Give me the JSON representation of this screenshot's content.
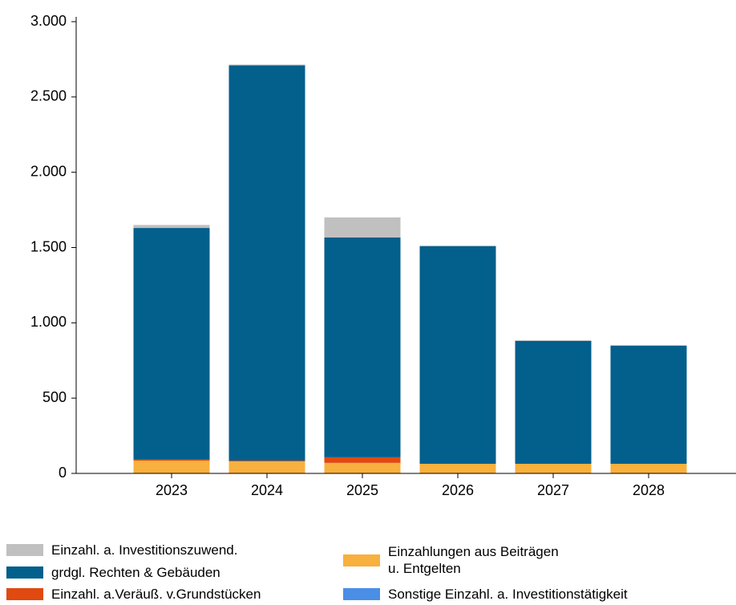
{
  "chart_data": {
    "type": "stacked_bar",
    "categories": [
      "2023",
      "2024",
      "2025",
      "2026",
      "2027",
      "2028"
    ],
    "series": [
      {
        "name": "Einzahlungen aus Beiträgen\nu. Entgelten",
        "color": "#f8b03e",
        "values": [
          85,
          80,
          70,
          64,
          64,
          64
        ]
      },
      {
        "name": "Einzahl. a.Veräuß. v.Grundstücken",
        "color": "#e04a10",
        "values": [
          8,
          5,
          37,
          0,
          0,
          0
        ]
      },
      {
        "name": "grdgl. Rechten & Gebäuden",
        "color": "#035f8c",
        "values": [
          1537,
          2625,
          1460,
          1445,
          816,
          784
        ]
      },
      {
        "name": "Einzahl. a. Investitionszuwend.",
        "color": "#c0c0c0",
        "values": [
          20,
          5,
          133,
          5,
          5,
          5
        ]
      },
      {
        "name": "Sonstige Einzahl. a. Investitionstätigkeit",
        "color": "#4a8ee6",
        "values": [
          0,
          0,
          0,
          0,
          0,
          0
        ]
      }
    ],
    "ylim": [
      0,
      3000
    ],
    "yticks": [
      0,
      {
        "value": 500,
        "label": "500"
      },
      {
        "value": 1000,
        "label": "1.000"
      },
      {
        "value": 1500,
        "label": "1.500"
      },
      {
        "value": 2000,
        "label": "2.000"
      },
      {
        "value": 2500,
        "label": "2.500"
      },
      {
        "value": 3000,
        "label": "3.000"
      }
    ]
  }
}
